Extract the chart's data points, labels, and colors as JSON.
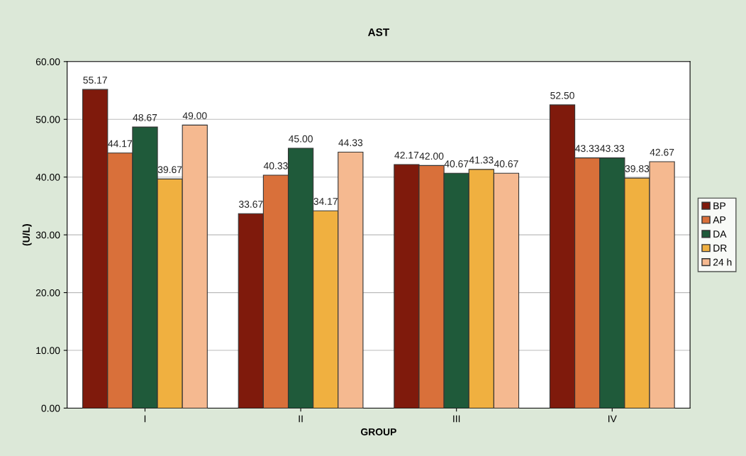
{
  "chart_data": {
    "type": "bar",
    "title": "AST",
    "xlabel": "GROUP",
    "ylabel": "(U/L)",
    "categories": [
      "I",
      "II",
      "III",
      "IV"
    ],
    "series": [
      {
        "name": "BP",
        "color": "#7f1a0c",
        "values": [
          55.17,
          33.67,
          42.17,
          52.5
        ],
        "value_labels": [
          "55.17",
          "33.67",
          "42.17",
          "52.50"
        ]
      },
      {
        "name": "AP",
        "color": "#d9703a",
        "values": [
          44.17,
          40.33,
          42.0,
          43.33
        ],
        "value_labels": [
          "44.17",
          "40.33",
          "42.00",
          "43.33"
        ]
      },
      {
        "name": "DA",
        "color": "#1f5a3a",
        "values": [
          48.67,
          45.0,
          40.67,
          43.33
        ],
        "value_labels": [
          "48.67",
          "45.00",
          "40.67",
          "43.33"
        ]
      },
      {
        "name": "DR",
        "color": "#f0b040",
        "values": [
          39.67,
          34.17,
          41.33,
          39.83
        ],
        "value_labels": [
          "39.67",
          "34.17",
          "41.33",
          "39.83"
        ]
      },
      {
        "name": "24 h",
        "color": "#f5b990",
        "values": [
          49.0,
          44.33,
          40.67,
          42.67
        ],
        "value_labels": [
          "49.00",
          "44.33",
          "40.67",
          "42.67"
        ]
      }
    ],
    "ylim": [
      0,
      60
    ],
    "yticks": [
      {
        "value": 0,
        "label": "0.00"
      },
      {
        "value": 10,
        "label": "10.00"
      },
      {
        "value": 20,
        "label": "20.00"
      },
      {
        "value": 30,
        "label": "30.00"
      },
      {
        "value": 40,
        "label": "40.00"
      },
      {
        "value": 50,
        "label": "50.00"
      },
      {
        "value": 60,
        "label": "60.00"
      }
    ],
    "grid": "y",
    "legend": "right"
  }
}
